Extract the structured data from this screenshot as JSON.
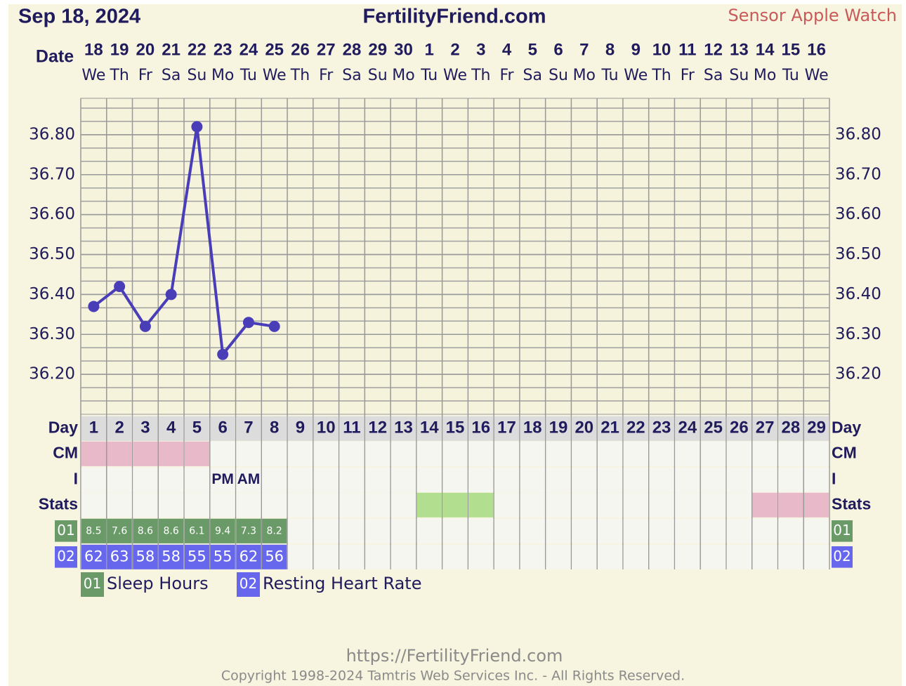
{
  "chart_data": {
    "type": "line",
    "date": "Sep 18, 2024",
    "title": "FertilityFriend.com",
    "source": "Sensor Apple Watch",
    "date_label": "Date",
    "categories": [
      "18",
      "19",
      "20",
      "21",
      "22",
      "23",
      "24",
      "25",
      "26",
      "27",
      "28",
      "29",
      "30",
      "1",
      "2",
      "3",
      "4",
      "5",
      "6",
      "7",
      "8",
      "9",
      "10",
      "11",
      "12",
      "13",
      "14",
      "15",
      "16"
    ],
    "weekdays": [
      "We",
      "Th",
      "Fr",
      "Sa",
      "Su",
      "Mo",
      "Tu",
      "We",
      "Th",
      "Fr",
      "Sa",
      "Su",
      "Mo",
      "Tu",
      "We",
      "Th",
      "Fr",
      "Sa",
      "Su",
      "Mo",
      "Tu",
      "We",
      "Th",
      "Fr",
      "Sa",
      "Su",
      "Mo",
      "Tu",
      "We"
    ],
    "series": [
      {
        "color": "#4a3db8",
        "values": [
          36.37,
          36.42,
          36.32,
          36.4,
          36.82,
          36.25,
          36.33,
          36.32,
          null,
          null,
          null,
          null,
          null,
          null,
          null,
          null,
          null,
          null,
          null,
          null,
          null,
          null,
          null,
          null,
          null,
          null,
          null,
          null,
          null
        ]
      }
    ],
    "ylim": [
      36.1,
      36.9
    ],
    "yticks": [
      {
        "value": 36.2,
        "label": "36.20"
      },
      {
        "value": 36.3,
        "label": "36.30"
      },
      {
        "value": 36.4,
        "label": "36.40"
      },
      {
        "value": 36.5,
        "label": "36.50"
      },
      {
        "value": 36.6,
        "label": "36.60"
      },
      {
        "value": 36.7,
        "label": "36.70"
      },
      {
        "value": 36.8,
        "label": "36.80"
      }
    ],
    "grid": true,
    "day_label": "Day",
    "cycle_days": [
      1,
      2,
      3,
      4,
      5,
      6,
      7,
      8,
      9,
      10,
      11,
      12,
      13,
      14,
      15,
      16,
      17,
      18,
      19,
      20,
      21,
      22,
      23,
      24,
      25,
      26,
      27,
      28,
      29
    ],
    "cm": {
      "label": "CM",
      "color": "#e8b9c9",
      "days": [
        1,
        2,
        3,
        4,
        5
      ]
    },
    "intercourse": {
      "label": "I",
      "entries": [
        {
          "day": 6,
          "text": "PM"
        },
        {
          "day": 7,
          "text": "AM"
        }
      ]
    },
    "stats": {
      "label": "Stats",
      "highlights": [
        {
          "color": "#b2df8f",
          "days": [
            14,
            15,
            16
          ]
        },
        {
          "color": "#e8b9c9",
          "days": [
            27,
            28,
            29
          ]
        }
      ]
    },
    "sleep_hours": {
      "code": "01",
      "name": "Sleep Hours",
      "color": "#6a9a67",
      "values": [
        8.5,
        7.6,
        8.6,
        8.6,
        6.1,
        9.4,
        7.3,
        8.2
      ]
    },
    "resting_heart_rate": {
      "code": "02",
      "name": "Resting Heart Rate",
      "color": "#6767ee",
      "values": [
        62,
        63,
        58,
        58,
        55,
        55,
        62,
        56
      ]
    },
    "footer": {
      "url": "https://FertilityFriend.com",
      "copyright": "Copyright 1998-2024 Tamtris Web Services Inc. - All Rights Reserved."
    }
  }
}
